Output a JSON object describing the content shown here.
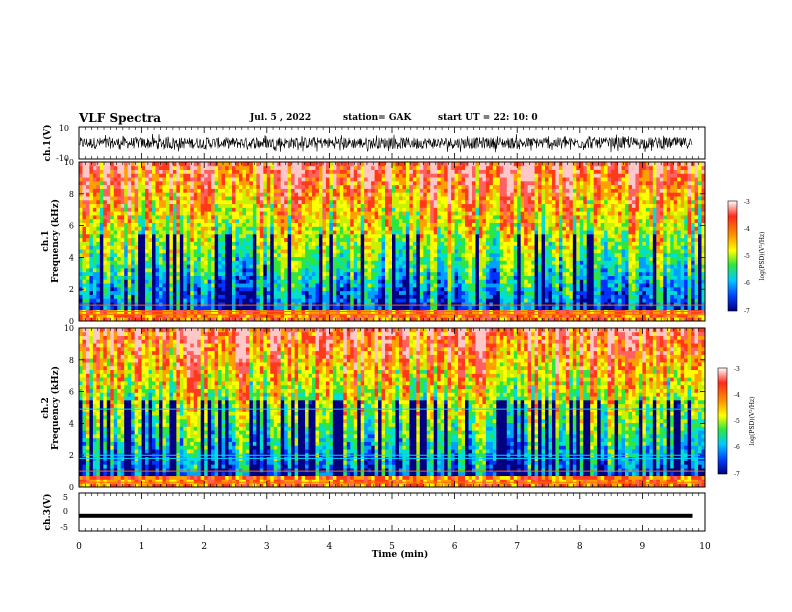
{
  "header": {
    "title": "VLF Spectra",
    "date": "Jul. 5 , 2022",
    "station": "station= GAK",
    "start": "start UT = 22: 10: 0"
  },
  "axes": {
    "ch1_ylabel": "ch.1(V)",
    "ch1_yticks": [
      "10",
      "-10"
    ],
    "spec1_ylabel_line1": "ch.1",
    "spec1_ylabel_line2": "Frequency (kHz)",
    "spec2_ylabel_line1": "ch.2",
    "spec2_ylabel_line2": "Frequency (kHz)",
    "freq_ticks": [
      "0",
      "2",
      "4",
      "6",
      "8",
      "10"
    ],
    "ch3_ylabel": "ch.3(V)",
    "ch3_yticks": [
      "5",
      "0",
      "-5"
    ],
    "xlabel": "Time (min)",
    "xticks": [
      "0",
      "1",
      "2",
      "3",
      "4",
      "5",
      "6",
      "7",
      "8",
      "9",
      "10"
    ]
  },
  "colorbar": {
    "label": "log(PSD)(V²/Hz)",
    "ticks": [
      "-3",
      "-4",
      "-5",
      "-6",
      "-7"
    ],
    "colors": [
      "#ffffff",
      "#ff2a1a",
      "#ff9a00",
      "#ffff00",
      "#2fe640",
      "#00c8ff",
      "#0044ff",
      "#000080"
    ]
  },
  "chart_data": [
    {
      "type": "line",
      "title": "ch.1 waveform",
      "ylabel": "ch.1(V)",
      "xlabel": "Time (min)",
      "xlim": [
        0,
        10
      ],
      "ylim": [
        -10,
        10
      ],
      "trace_data_end_min": 9.8,
      "approx_amplitude_V": [
        -6,
        6
      ]
    },
    {
      "type": "heatmap",
      "title": "ch.1 spectrogram",
      "ylabel": "Frequency (kHz)",
      "xlim": [
        0,
        10
      ],
      "ylim": [
        0,
        10
      ],
      "colorbar_range_logPSD": [
        -7,
        -3
      ],
      "persistent_lines_kHz": [
        0.4,
        0.6,
        1.0
      ]
    },
    {
      "type": "heatmap",
      "title": "ch.2 spectrogram",
      "ylabel": "Frequency (kHz)",
      "xlim": [
        0,
        10
      ],
      "ylim": [
        0,
        10
      ],
      "colorbar_range_logPSD": [
        -7,
        -3
      ],
      "persistent_lines_kHz": [
        0.3,
        1.0,
        1.8,
        2.0,
        4.9
      ]
    },
    {
      "type": "line",
      "title": "ch.3 waveform",
      "ylabel": "ch.3(V)",
      "xlabel": "Time (min)",
      "xlim": [
        0,
        10
      ],
      "ylim": [
        -5,
        5
      ],
      "constant_value_V": -1,
      "trace_data_end_min": 9.8
    }
  ]
}
